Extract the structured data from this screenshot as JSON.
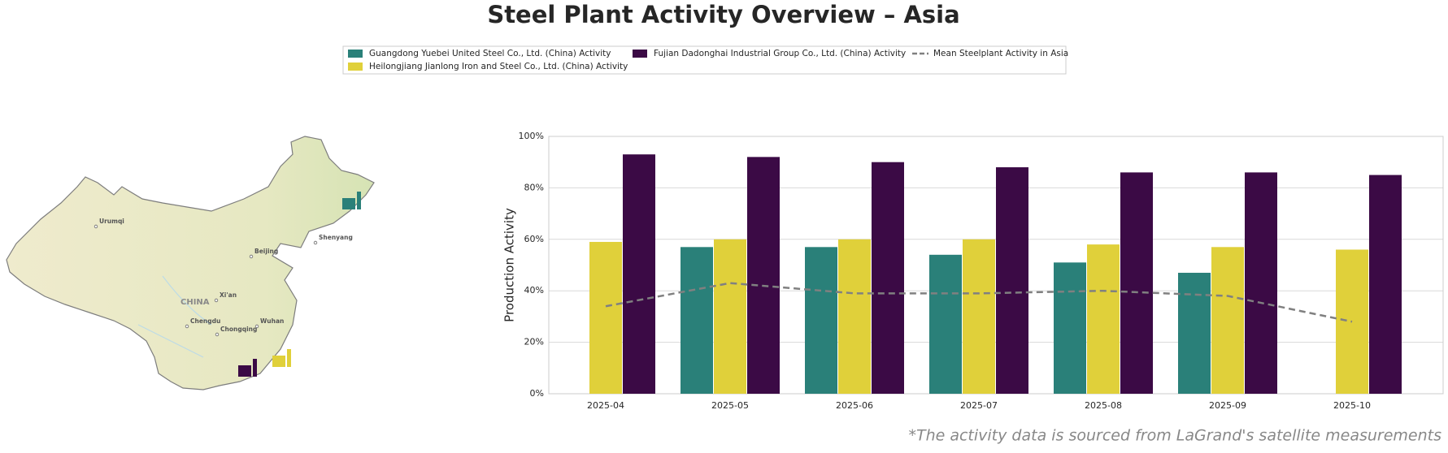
{
  "chart_data": {
    "type": "bar",
    "title": "Steel Plant Activity Overview – Asia",
    "y_label": "Production Activity",
    "categories": [
      "2025-04",
      "2025-05",
      "2025-06",
      "2025-07",
      "2025-08",
      "2025-09",
      "2025-10"
    ],
    "series": [
      {
        "name": "Guangdong Yuebei United Steel Co., Ltd. (China) Activity",
        "color": "#2a8079",
        "type": "bar",
        "values": [
          null,
          57,
          57,
          54,
          51,
          47,
          null
        ]
      },
      {
        "name": "Heilongjiang Jianlong Iron and Steel Co., Ltd. (China) Activity",
        "color": "#e0d03a",
        "type": "bar",
        "values": [
          59,
          60,
          60,
          60,
          58,
          57,
          56
        ]
      },
      {
        "name": "Fujian Dadonghai Industrial Group Co., Ltd. (China) Activity",
        "color": "#3b0a45",
        "type": "bar",
        "values": [
          93,
          92,
          90,
          88,
          86,
          86,
          85
        ]
      },
      {
        "name": "Mean Steelplant Activity in Asia",
        "color": "#808080",
        "type": "line",
        "style": "dashed",
        "values": [
          34,
          43,
          39,
          39,
          40,
          38,
          28
        ]
      }
    ],
    "ylim": [
      0,
      100
    ],
    "yticks": [
      {
        "value": 0,
        "label": "0%"
      },
      {
        "value": 20,
        "label": "20%"
      },
      {
        "value": 40,
        "label": "40%"
      },
      {
        "value": 60,
        "label": "60%"
      },
      {
        "value": 80,
        "label": "80%"
      },
      {
        "value": 100,
        "label": "100%"
      }
    ],
    "grid": true,
    "legend": "top",
    "note": "*The activity data is sourced from LaGrand's satellite measurements"
  },
  "map": {
    "labels": [
      "Urumqi",
      "Beijing",
      "Shenyang",
      "Xi'an",
      "CHINA",
      "Chengdu",
      "Chongqing",
      "Wuhan"
    ]
  }
}
